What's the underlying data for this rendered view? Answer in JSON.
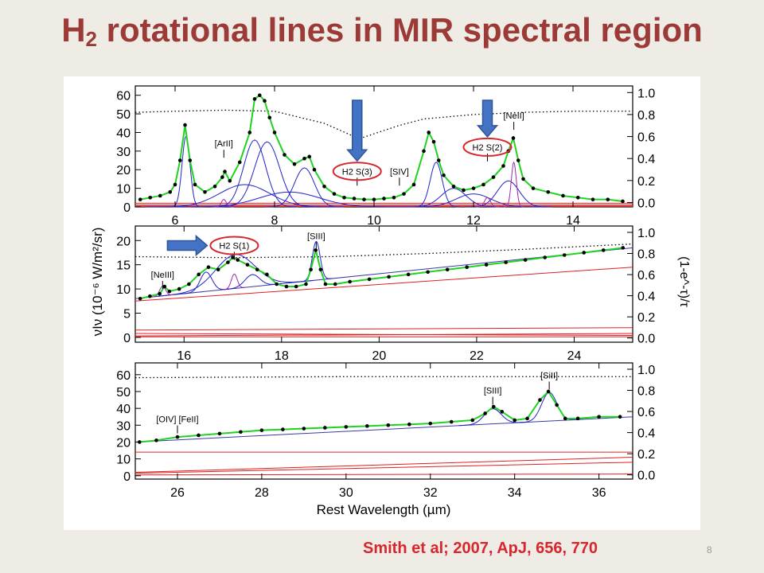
{
  "slide": {
    "title_main": "H",
    "title_sub": "2",
    "title_rest": " rotational lines in MIR spectral region",
    "citation": "Smith et al; 2007, ApJ, 656, 770",
    "slide_number": "8"
  },
  "colors": {
    "title": "#9b3a37",
    "citation": "#d8262d",
    "fit": "#21d321",
    "data": "#000000",
    "gaussian": "#2222cc",
    "h2_line": "#9c27b0",
    "extinction_components": "#e02020",
    "arrow": "#4472c4",
    "highlight_oval": "#d8262d"
  },
  "chart_data": {
    "type": "line",
    "xlabel": "Rest Wavelength (µm)",
    "ylabel": "νIν (10⁻⁶ W/m²/sr)",
    "ylabel_right": "(1-e^-τ)/τ",
    "panels": [
      {
        "name": "panel-1",
        "xlim": [
          5.2,
          15.2
        ],
        "ylim": [
          0,
          65
        ],
        "xticks": [
          6,
          8,
          10,
          12,
          14
        ],
        "yticks": [
          0,
          10,
          20,
          30,
          40,
          50,
          60
        ],
        "y2ticks": [
          "0.0",
          "0.2",
          "0.4",
          "0.6",
          "0.8",
          "1.0"
        ],
        "labels": [
          {
            "text": "[ArII]",
            "x": 6.98,
            "y": 29
          },
          {
            "text": "H2 S(3)",
            "x": 9.66,
            "y": 14,
            "highlight": true,
            "arrow": true
          },
          {
            "text": "[SIV]",
            "x": 10.51,
            "y": 14
          },
          {
            "text": "H2 S(2)",
            "x": 12.28,
            "y": 27,
            "highlight": true,
            "arrow": true
          },
          {
            "text": "[NeII]",
            "x": 12.81,
            "y": 44
          }
        ],
        "data": {
          "x": [
            5.3,
            5.5,
            5.7,
            5.9,
            6.0,
            6.1,
            6.2,
            6.3,
            6.4,
            6.6,
            6.8,
            6.95,
            7.0,
            7.1,
            7.3,
            7.5,
            7.6,
            7.7,
            7.8,
            7.9,
            8.0,
            8.2,
            8.4,
            8.6,
            8.7,
            8.8,
            9.0,
            9.2,
            9.4,
            9.6,
            9.8,
            10.0,
            10.2,
            10.4,
            10.6,
            10.8,
            11.0,
            11.1,
            11.2,
            11.3,
            11.4,
            11.6,
            11.8,
            12.0,
            12.2,
            12.4,
            12.6,
            12.7,
            12.8,
            12.9,
            13.0,
            13.2,
            13.5,
            13.8,
            14.1,
            14.4,
            14.7,
            15.0
          ],
          "y": [
            4,
            5,
            6,
            8,
            12,
            25,
            44,
            25,
            12,
            8,
            11,
            16,
            19,
            14,
            24,
            40,
            58,
            60,
            57,
            48,
            40,
            28,
            23,
            26,
            27,
            20,
            11,
            7,
            5,
            4.5,
            4,
            4,
            4.5,
            5,
            7,
            12,
            30,
            40,
            35,
            25,
            17,
            11,
            9,
            10,
            12,
            16,
            22,
            30,
            37,
            25,
            15,
            10,
            8,
            6,
            5,
            4,
            4,
            3
          ]
        },
        "fit": {
          "x": [
            5.3,
            5.5,
            5.7,
            5.9,
            6.0,
            6.1,
            6.2,
            6.3,
            6.4,
            6.6,
            6.8,
            6.95,
            7.0,
            7.1,
            7.3,
            7.5,
            7.6,
            7.7,
            7.8,
            7.9,
            8.0,
            8.2,
            8.4,
            8.6,
            8.7,
            8.8,
            9.0,
            9.2,
            9.4,
            9.6,
            9.8,
            10.0,
            10.2,
            10.4,
            10.6,
            10.8,
            11.0,
            11.1,
            11.2,
            11.3,
            11.4,
            11.6,
            11.8,
            12.0,
            12.2,
            12.4,
            12.6,
            12.7,
            12.8,
            12.9,
            13.0,
            13.2,
            13.5,
            13.8,
            14.1,
            14.4,
            14.7,
            15.0
          ],
          "y": [
            4,
            5,
            6,
            8,
            12,
            25,
            44,
            25,
            12,
            8,
            11,
            16,
            19,
            14,
            24,
            40,
            58,
            60,
            57,
            48,
            40,
            28,
            23,
            26,
            27,
            20,
            11,
            7,
            5,
            4.5,
            4,
            4,
            4.5,
            5,
            7,
            12,
            30,
            40,
            35,
            25,
            17,
            11,
            9,
            10,
            12,
            16,
            22,
            30,
            37,
            25,
            15,
            10,
            8,
            6,
            5,
            4,
            4,
            3
          ]
        },
        "gaussians": [
          {
            "center": 6.22,
            "width": 0.08,
            "height": 38
          },
          {
            "center": 7.6,
            "width": 0.22,
            "height": 36
          },
          {
            "center": 7.85,
            "width": 0.25,
            "height": 35
          },
          {
            "center": 8.6,
            "width": 0.2,
            "height": 21
          },
          {
            "center": 11.25,
            "width": 0.12,
            "height": 24
          },
          {
            "center": 11.6,
            "width": 0.25,
            "height": 10
          },
          {
            "center": 12.7,
            "width": 0.22,
            "height": 14
          },
          {
            "center": 7.4,
            "width": 0.5,
            "height": 12
          },
          {
            "center": 8.3,
            "width": 0.6,
            "height": 8
          },
          {
            "center": 12.0,
            "width": 0.35,
            "height": 7
          }
        ],
        "h2_lines": [
          {
            "center": 6.98,
            "width": 0.05,
            "height": 4
          },
          {
            "center": 12.28,
            "width": 0.06,
            "height": 5
          },
          {
            "center": 12.81,
            "width": 0.05,
            "height": 24
          }
        ],
        "extinction": {
          "x": [
            5.2,
            6,
            7,
            8,
            9,
            9.7,
            10.5,
            11,
            12,
            13,
            14,
            15.2
          ],
          "y2": [
            0.82,
            0.83,
            0.84,
            0.83,
            0.72,
            0.58,
            0.7,
            0.76,
            0.8,
            0.82,
            0.83,
            0.83
          ]
        },
        "components": [
          {
            "y": [
              1,
              1
            ]
          },
          {
            "y": [
              0.5,
              0.5
            ]
          },
          {
            "y": [
              2,
              2
            ]
          },
          {
            "y": [
              0.2,
              0.2
            ]
          }
        ]
      },
      {
        "name": "panel-2",
        "xlim": [
          15,
          25.2
        ],
        "ylim": [
          -1,
          23
        ],
        "xticks": [
          16,
          18,
          20,
          22,
          24
        ],
        "yticks": [
          0,
          5,
          10,
          15,
          20
        ],
        "y2ticks": [
          "0.0",
          "0.2",
          "0.4",
          "0.6",
          "0.8",
          "1.0"
        ],
        "labels": [
          {
            "text": "[NeIII]",
            "x": 15.56,
            "y": 11
          },
          {
            "text": "H2 S(1)",
            "x": 17.03,
            "y": 17,
            "highlight": true,
            "arrow": true
          },
          {
            "text": "[SIII]",
            "x": 18.71,
            "y": 19
          }
        ],
        "data": {
          "x": [
            15.1,
            15.3,
            15.5,
            15.6,
            15.7,
            15.9,
            16.1,
            16.3,
            16.5,
            16.7,
            16.9,
            17.0,
            17.1,
            17.3,
            17.5,
            17.7,
            17.9,
            18.1,
            18.3,
            18.5,
            18.6,
            18.7,
            18.8,
            18.9,
            19.1,
            19.4,
            19.8,
            20.2,
            20.6,
            21.0,
            21.4,
            21.8,
            22.2,
            22.6,
            23.0,
            23.4,
            23.8,
            24.2,
            24.6,
            25.0
          ],
          "y": [
            8,
            8.5,
            9,
            10.5,
            9.5,
            10,
            11,
            13,
            14.5,
            14,
            15.5,
            16.5,
            16,
            15,
            14,
            13,
            11,
            10.5,
            10.5,
            11,
            14,
            18,
            14,
            11,
            11,
            11.5,
            12,
            12.5,
            13,
            13.5,
            14,
            14.5,
            15,
            15.5,
            16,
            16.5,
            17,
            17.5,
            18,
            18.5
          ]
        },
        "fit": {
          "x": [
            15.1,
            15.3,
            15.5,
            15.6,
            15.7,
            15.9,
            16.1,
            16.3,
            16.5,
            16.7,
            16.9,
            17.0,
            17.1,
            17.3,
            17.5,
            17.7,
            17.9,
            18.1,
            18.3,
            18.5,
            18.6,
            18.7,
            18.8,
            18.9,
            19.1,
            19.4,
            19.8,
            20.2,
            20.6,
            21.0,
            21.4,
            21.8,
            22.2,
            22.6,
            23.0,
            23.4,
            23.8,
            24.2,
            24.6,
            25.0
          ],
          "y": [
            8,
            8.5,
            9,
            10.5,
            9.5,
            10,
            11,
            13,
            14.5,
            14,
            15.5,
            16.5,
            16,
            15,
            14,
            13,
            11,
            10.5,
            10.5,
            11,
            14,
            18,
            14,
            11,
            11,
            11.5,
            12,
            12.5,
            13,
            13.5,
            14,
            14.5,
            15,
            15.5,
            16,
            16.5,
            17,
            17.5,
            18,
            18.5
          ]
        },
        "gaussians": [
          {
            "center": 16.45,
            "width": 0.12,
            "height": 4
          },
          {
            "center": 17.05,
            "width": 0.4,
            "height": 7
          },
          {
            "center": 17.4,
            "width": 0.15,
            "height": 2.5
          },
          {
            "center": 18.71,
            "width": 0.08,
            "height": 8
          }
        ],
        "h2_lines": [
          {
            "center": 15.56,
            "width": 0.06,
            "height": 2
          },
          {
            "center": 17.03,
            "width": 0.06,
            "height": 3
          }
        ],
        "continuum": {
          "x": [
            15.0,
            25.2
          ],
          "y": [
            8,
            18.5
          ]
        },
        "extinction": {
          "x": [
            15,
            17,
            19,
            21,
            23,
            25.2
          ],
          "y2": [
            0.77,
            0.76,
            0.77,
            0.8,
            0.84,
            0.89
          ]
        },
        "components": [
          {
            "x": [
              15,
              25.2
            ],
            "y": [
              7.5,
              14.5
            ]
          },
          {
            "x": [
              15,
              25.2
            ],
            "y": [
              1.5,
              2.0
            ]
          },
          {
            "x": [
              15,
              25.2
            ],
            "y": [
              0.8,
              0.4
            ]
          },
          {
            "x": [
              15,
              25.2
            ],
            "y": [
              0.3,
              0.8
            ]
          },
          {
            "x": [
              15,
              25.2
            ],
            "y": [
              0.1,
              0.1
            ]
          }
        ]
      },
      {
        "name": "panel-3",
        "xlim": [
          25,
          36.8
        ],
        "ylim": [
          -2,
          67
        ],
        "xticks": [
          26,
          28,
          30,
          32,
          34,
          36
        ],
        "yticks": [
          0,
          10,
          20,
          30,
          40,
          50,
          60
        ],
        "y2ticks": [
          "0.0",
          "0.2",
          "0.4",
          "0.6",
          "0.8",
          "1.0"
        ],
        "labels": [
          {
            "text": "[OIV] [FeII]",
            "x": 26.0,
            "y": 28
          },
          {
            "text": "[SIII]",
            "x": 33.48,
            "y": 45
          },
          {
            "text": "[SiII]",
            "x": 34.82,
            "y": 54
          }
        ],
        "data": {
          "x": [
            25.1,
            25.5,
            26.0,
            26.5,
            27.0,
            27.5,
            28.0,
            28.5,
            29.0,
            29.5,
            30.0,
            30.5,
            31.0,
            31.5,
            32.0,
            32.5,
            33.0,
            33.3,
            33.5,
            33.7,
            34.0,
            34.3,
            34.6,
            34.8,
            35.0,
            35.2,
            35.5,
            36.0,
            36.5
          ],
          "y": [
            20,
            21,
            23,
            24,
            25,
            26,
            27,
            27.5,
            28,
            28.5,
            29,
            29.5,
            30,
            30.5,
            31,
            32,
            33,
            37,
            41,
            38,
            33,
            34,
            45,
            50,
            42,
            34,
            34,
            35,
            35
          ]
        },
        "fit": {
          "x": [
            25.1,
            25.5,
            26.0,
            26.5,
            27.0,
            27.5,
            28.0,
            28.5,
            29.0,
            29.5,
            30.0,
            30.5,
            31.0,
            31.5,
            32.0,
            32.5,
            33.0,
            33.3,
            33.5,
            33.7,
            34.0,
            34.3,
            34.6,
            34.8,
            35.0,
            35.2,
            35.5,
            36.0,
            36.5
          ],
          "y": [
            20,
            21,
            23,
            24,
            25,
            26,
            27,
            27.5,
            28,
            28.5,
            29,
            29.5,
            30,
            30.5,
            31,
            32,
            33,
            37,
            41,
            38,
            33,
            34,
            45,
            50,
            42,
            34,
            34,
            35,
            35
          ]
        },
        "gaussians": [
          {
            "center": 33.48,
            "width": 0.2,
            "height": 9
          },
          {
            "center": 34.82,
            "width": 0.18,
            "height": 17
          }
        ],
        "h2_lines": [],
        "continuum": {
          "x": [
            25.0,
            36.8
          ],
          "y": [
            20,
            35
          ]
        },
        "extinction": {
          "x": [
            25,
            30,
            36.8
          ],
          "y2": [
            0.92,
            0.93,
            0.93
          ]
        },
        "components": [
          {
            "x": [
              25,
              36.8
            ],
            "y": [
              14,
              14
            ]
          },
          {
            "x": [
              25,
              36.8
            ],
            "y": [
              2,
              11
            ]
          },
          {
            "x": [
              25,
              36.8
            ],
            "y": [
              1.5,
              8
            ]
          },
          {
            "x": [
              25,
              36.8
            ],
            "y": [
              0.5,
              1
            ]
          }
        ]
      }
    ]
  }
}
